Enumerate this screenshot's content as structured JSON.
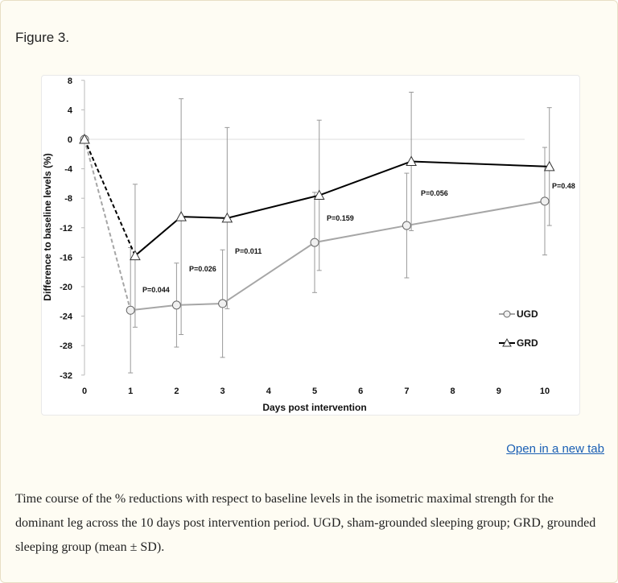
{
  "figure_title": "Figure 3.",
  "open_link": "Open in a new tab",
  "caption": "Time course of the % reductions with respect to baseline levels in the isometric maximal strength for the dominant leg across the 10 days post intervention period. UGD, sham-grounded sleeping group; GRD, grounded sleeping group (mean ± SD).",
  "chart_data": {
    "type": "line",
    "title": "",
    "xlabel": "Days post intervention",
    "ylabel": "Difference to baseline levels (%)",
    "xlim": [
      0,
      10
    ],
    "ylim": [
      -32,
      8
    ],
    "x_ticks": [
      0,
      1,
      2,
      3,
      4,
      5,
      6,
      7,
      8,
      9,
      10
    ],
    "y_ticks": [
      8,
      4,
      0,
      -4,
      -8,
      -12,
      -16,
      -20,
      -24,
      -28,
      -32
    ],
    "grid": false,
    "reference_line": 0,
    "legend_position": "bottom-right",
    "x": [
      0,
      1,
      2,
      3,
      5,
      7,
      10
    ],
    "series": [
      {
        "name": "UGD",
        "marker": "circle",
        "color": "#a6a6a6",
        "values": [
          0,
          -23.2,
          -22.5,
          -22.3,
          -14.0,
          -11.7,
          -8.4
        ],
        "sd": [
          0,
          8.5,
          5.7,
          7.3,
          6.8,
          7.1,
          7.3
        ]
      },
      {
        "name": "GRD",
        "marker": "triangle",
        "color": "#000000",
        "values": [
          0,
          -15.8,
          -10.5,
          -10.7,
          -7.6,
          -3.0,
          -3.7
        ],
        "sd": [
          0,
          9.7,
          16.0,
          12.3,
          10.2,
          9.4,
          8.0
        ]
      }
    ],
    "annotations": [
      "P=0.044",
      "P=0.026",
      "P=0.011",
      "P=0.159",
      "P=0.056",
      "P=0.48"
    ]
  }
}
